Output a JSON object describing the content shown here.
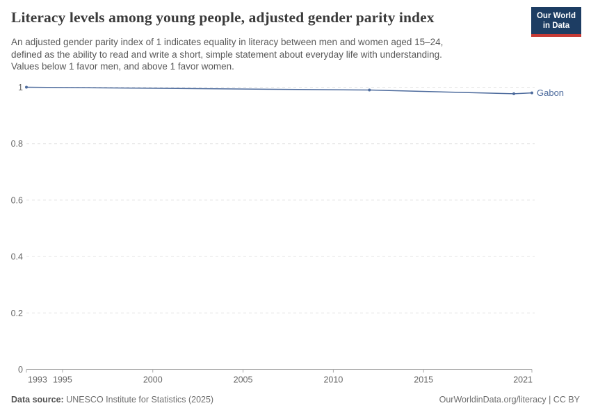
{
  "header": {
    "title": "Literacy levels among young people, adjusted gender parity index",
    "subtitle_lines": [
      "An adjusted gender parity index of 1 indicates equality in literacy between men and women aged 15–24,",
      "defined as the ability to read and write a short, simple statement about everyday life with understanding.",
      "Values below 1 favor men, and above 1 favor women."
    ],
    "logo": {
      "line1": "Our World",
      "line2": "in Data",
      "bg_color": "#1d3d63",
      "accent_color": "#c63a35"
    }
  },
  "chart_data": {
    "type": "line",
    "title": "Literacy levels among young people, adjusted gender parity index",
    "x": [
      1993,
      2012,
      2020,
      2021
    ],
    "series": [
      {
        "name": "Gabon",
        "color": "#4c6a9c",
        "values": [
          1.0,
          0.99,
          0.977,
          0.98
        ]
      }
    ],
    "end_label": "Gabon",
    "x_ticks": [
      "1993",
      "1995",
      "2000",
      "2005",
      "2010",
      "2015",
      "2021"
    ],
    "x_tick_years": [
      1993,
      1995,
      2000,
      2005,
      2010,
      2015,
      2021
    ],
    "y_ticks": [
      "0",
      "0.2",
      "0.4",
      "0.6",
      "0.8",
      "1"
    ],
    "y_tick_values": [
      0,
      0.2,
      0.4,
      0.6,
      0.8,
      1
    ],
    "xlim": [
      1993,
      2021
    ],
    "ylim": [
      0,
      1
    ],
    "grid": "horizontal-dashed",
    "legend_position": "end-of-line-label",
    "colors": {
      "grid": "#e3e3e3",
      "axis": "#a8a8a8",
      "tick_label": "#666666"
    }
  },
  "footer": {
    "source_label": "Data source:",
    "source_text": " UNESCO Institute for Statistics (2025)",
    "credit": "OurWorldinData.org/literacy | CC BY"
  }
}
